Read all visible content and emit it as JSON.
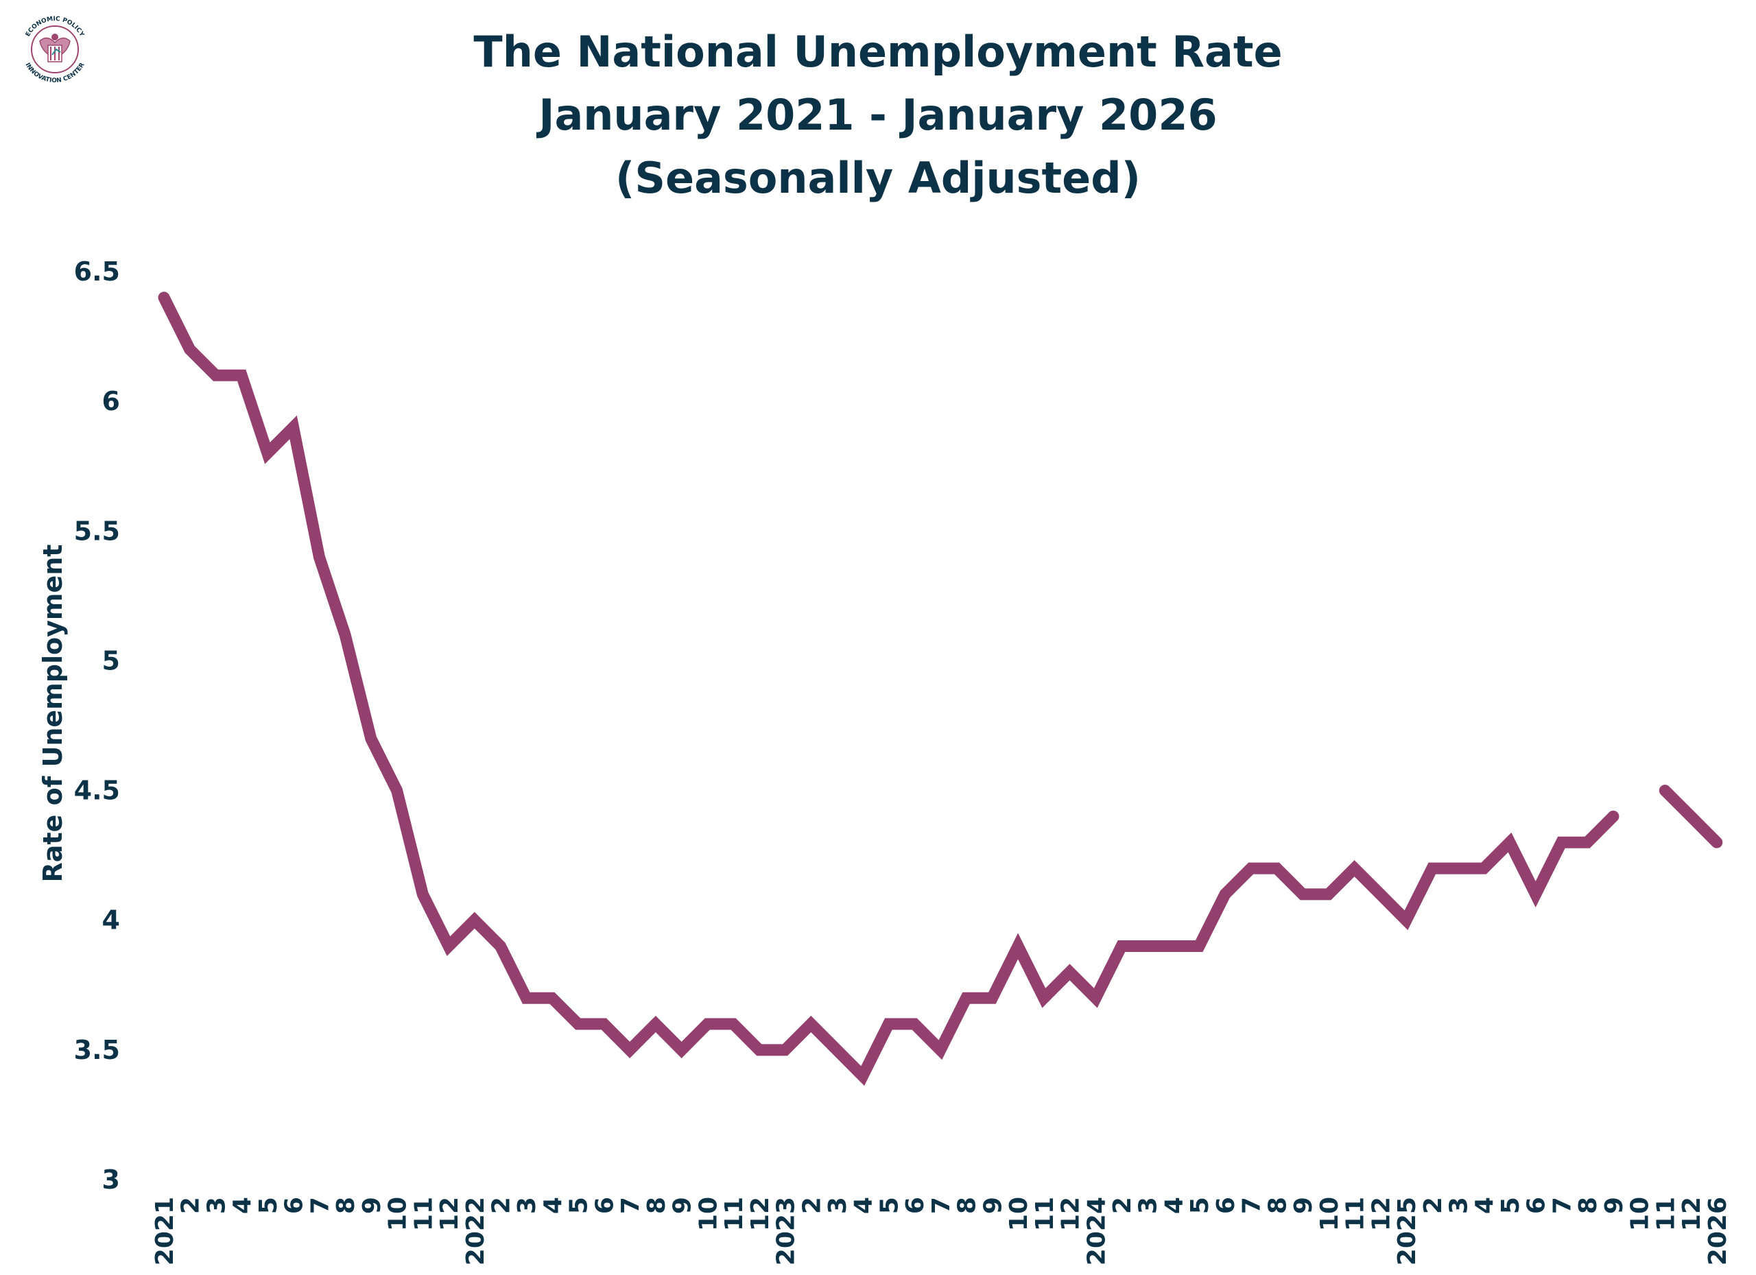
{
  "logo": {
    "text_top": "ECONOMIC POLICY",
    "text_bottom": "INNOVATION CENTER",
    "icon": "eagle-seal-icon",
    "colors": {
      "ring": "#a0476f",
      "text": "#0c3248",
      "accent": "#2a8a8c"
    }
  },
  "title": {
    "line1": "The National Unemployment Rate",
    "line2": "January 2021 - January 2026",
    "line3": "(Seasonally Adjusted)"
  },
  "colors": {
    "line": "#93406f",
    "text": "#0c3248",
    "background": "#ffffff"
  },
  "chart_data": {
    "type": "line",
    "title": "The National Unemployment Rate January 2021 - January 2026 (Seasonally Adjusted)",
    "xlabel": "",
    "ylabel": "Rate of Unemployment",
    "ylim": [
      3,
      6.5
    ],
    "yticks": [
      "3",
      "3.5",
      "4",
      "4.5",
      "5",
      "5.5",
      "6",
      "6.5"
    ],
    "grid": false,
    "legend": "none",
    "x_tick_labels": [
      "2021",
      "2",
      "3",
      "4",
      "5",
      "6",
      "7",
      "8",
      "9",
      "10",
      "11",
      "12",
      "2022",
      "2",
      "3",
      "4",
      "5",
      "6",
      "7",
      "8",
      "9",
      "10",
      "11",
      "12",
      "2023",
      "2",
      "3",
      "4",
      "5",
      "6",
      "7",
      "8",
      "9",
      "10",
      "11",
      "12",
      "2024",
      "2",
      "3",
      "4",
      "5",
      "6",
      "7",
      "8",
      "9",
      "10",
      "11",
      "12",
      "2025",
      "2",
      "3",
      "4",
      "5",
      "6",
      "7",
      "8",
      "9",
      "10",
      "11",
      "12",
      "2026"
    ],
    "series": [
      {
        "values": [
          6.4,
          6.2,
          6.1,
          6.1,
          5.8,
          5.9,
          5.4,
          5.1,
          4.7,
          4.5,
          4.1,
          3.9,
          4.0,
          3.9,
          3.7,
          3.7,
          3.6,
          3.6,
          3.5,
          3.6,
          3.5,
          3.6,
          3.6,
          3.5,
          3.5,
          3.6,
          3.5,
          3.4,
          3.6,
          3.6,
          3.5,
          3.7,
          3.7,
          3.9,
          3.7,
          3.8,
          3.7,
          3.9,
          3.9,
          3.9,
          3.9,
          4.1,
          4.2,
          4.2,
          4.1,
          4.1,
          4.2,
          4.1,
          4.0,
          4.2,
          4.2,
          4.2,
          4.3,
          4.1,
          4.3,
          4.3,
          4.4,
          null,
          4.5,
          4.4,
          4.3
        ]
      }
    ]
  }
}
